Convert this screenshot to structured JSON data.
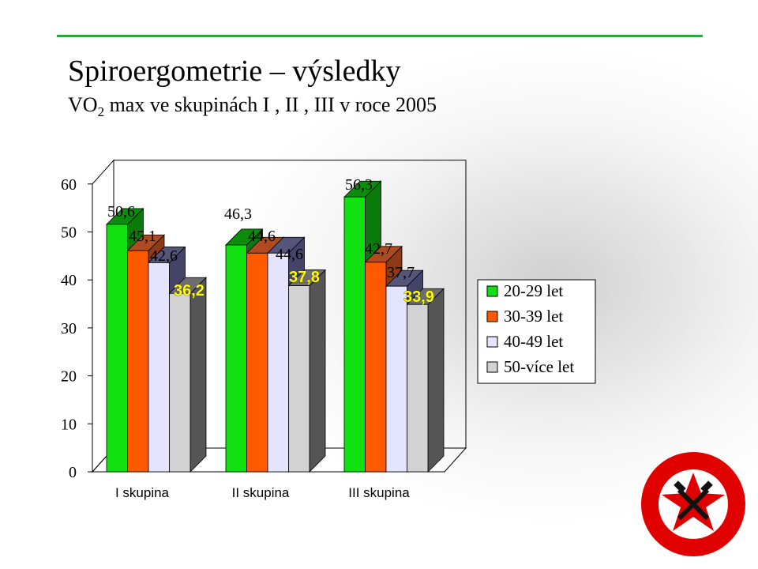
{
  "title": "Spiroergometrie – výsledky",
  "subtitle": {
    "prefix": "VO",
    "sub": "2",
    "rest": " max ve skupinách  I , II , III v roce 2005"
  },
  "chart_data": {
    "type": "bar",
    "categories": [
      "I skupina",
      "II skupina",
      "III skupina"
    ],
    "series": [
      {
        "name": "20-29 let",
        "color": "#11e011",
        "top_color": "#0c8c0c",
        "side_color": "#0a7a0a",
        "values": [
          50.6,
          46.3,
          56.3
        ],
        "labels": [
          "50,6",
          "46,3",
          "56,3"
        ],
        "label_style": [
          "dark",
          "dark",
          "dark"
        ]
      },
      {
        "name": "30-39 let",
        "color": "#ff5a00",
        "top_color": "#b04a20",
        "side_color": "#8c3a18",
        "values": [
          45.1,
          44.6,
          42.7
        ],
        "labels": [
          "45,1",
          "44,6",
          "42,7"
        ],
        "label_style": [
          "dark",
          "dark",
          "dark"
        ]
      },
      {
        "name": "40-49 let",
        "color": "#e4e4ff",
        "top_color": "#55557a",
        "side_color": "#44446a",
        "values": [
          42.6,
          44.6,
          37.7
        ],
        "labels": [
          "42,6",
          "44,6",
          "37,7"
        ],
        "label_style": [
          "dark",
          "dark",
          "dark"
        ]
      },
      {
        "name": "50-více let",
        "color": "#d2d2d2",
        "top_color": "#6e6e6e",
        "side_color": "#555555",
        "values": [
          36.2,
          37.8,
          33.9
        ],
        "labels": [
          "36,2",
          "37,8",
          "33,9"
        ],
        "label_style": [
          "yellow",
          "yellow",
          "yellow"
        ]
      }
    ],
    "y_ticks": [
      0,
      10,
      20,
      30,
      40,
      50,
      60
    ],
    "ylim": [
      0,
      60
    ],
    "legend_position": "right",
    "grid": false
  }
}
